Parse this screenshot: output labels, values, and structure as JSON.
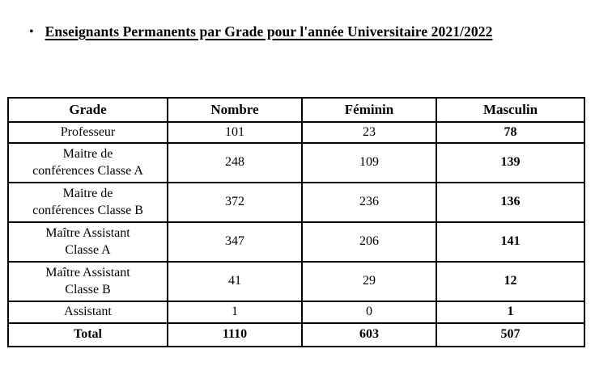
{
  "page": {
    "bullet": "•",
    "title": "Enseignants Permanents par Grade pour l'année Universitaire 2021/2022"
  },
  "table": {
    "columns": [
      "Grade",
      "Nombre",
      "Féminin",
      "Masculin"
    ],
    "rows": [
      {
        "cells": [
          "Professeur",
          "101",
          "23",
          "78"
        ]
      },
      {
        "cells": [
          "Maitre de\nconférences Classe A",
          "248",
          "109",
          "139"
        ]
      },
      {
        "cells": [
          "Maitre de\nconférences Classe B",
          "372",
          "236",
          "136"
        ]
      },
      {
        "cells": [
          "Maître Assistant\nClasse A",
          "347",
          "206",
          "141"
        ]
      },
      {
        "cells": [
          "Maître Assistant\nClasse B",
          "41",
          "29",
          "12"
        ]
      },
      {
        "cells": [
          "Assistant",
          "1",
          "0",
          "1"
        ]
      },
      {
        "cells": [
          "Total",
          "1110",
          "603",
          "507"
        ]
      }
    ],
    "colors": {
      "border": "#000000",
      "text": "#000000",
      "background": "#ffffff"
    }
  }
}
